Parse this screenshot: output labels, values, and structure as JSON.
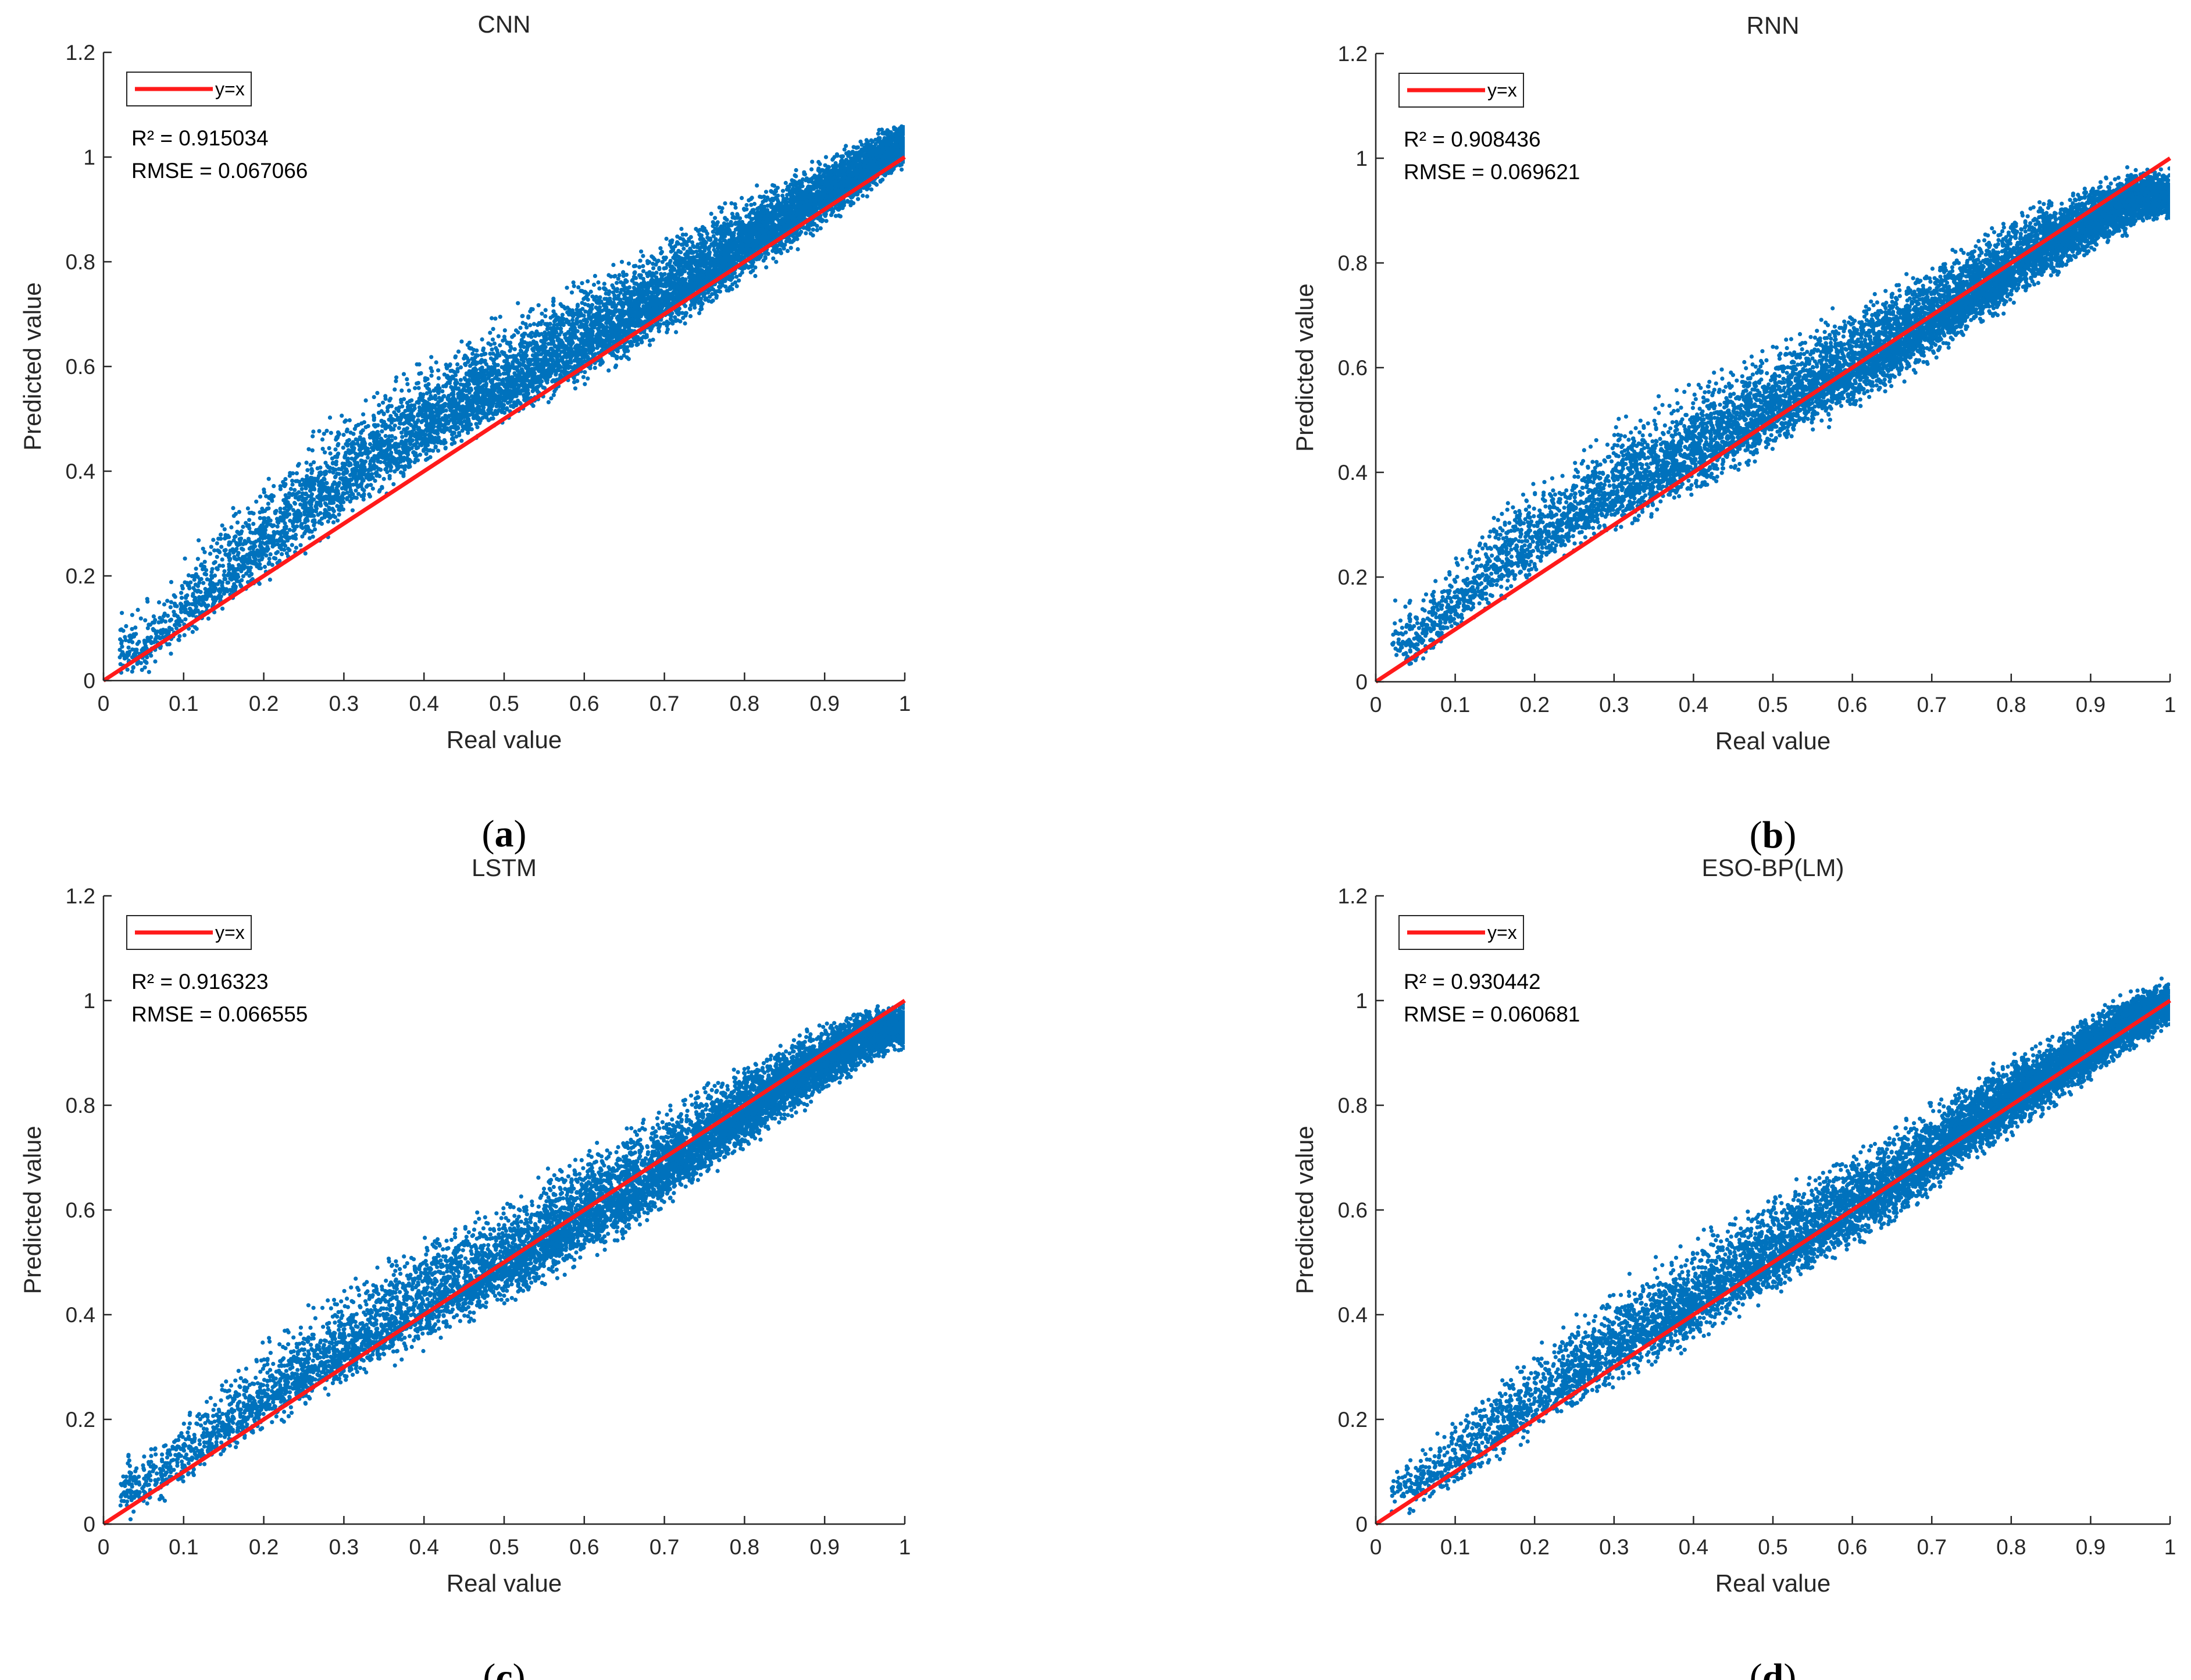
{
  "colors": {
    "scatter": "#0072BD",
    "fit_line": "#ff1a1a",
    "axis": "#262626"
  },
  "chart_data": [
    {
      "type": "scatter",
      "title": "CNN",
      "xlabel": "Real value",
      "ylabel": "Predicted value",
      "xlim": [
        0,
        1
      ],
      "ylim": [
        0,
        1.2
      ],
      "xticks": [
        "0",
        "0.1",
        "0.2",
        "0.3",
        "0.4",
        "0.5",
        "0.6",
        "0.7",
        "0.8",
        "0.9",
        "1"
      ],
      "yticks": [
        "0",
        "0.2",
        "0.4",
        "0.6",
        "0.8",
        "1",
        "1.2"
      ],
      "legend": [
        "y=x"
      ],
      "legend_position": "top-left",
      "reference_line": {
        "name": "y=x",
        "x": [
          0,
          1
        ],
        "y": [
          0,
          1
        ]
      },
      "stats": [
        "R² = 0.915034",
        "RMSE = 0.067066"
      ],
      "caption": "a",
      "cloud": [
        [
          0.05,
          0.06,
          0.05,
          0.08
        ],
        [
          0.15,
          0.2,
          0.06,
          0.1
        ],
        [
          0.25,
          0.33,
          0.07,
          0.11
        ],
        [
          0.35,
          0.44,
          0.07,
          0.11
        ],
        [
          0.45,
          0.53,
          0.07,
          0.11
        ],
        [
          0.55,
          0.61,
          0.07,
          0.11
        ],
        [
          0.65,
          0.69,
          0.07,
          0.1
        ],
        [
          0.75,
          0.78,
          0.06,
          0.09
        ],
        [
          0.85,
          0.88,
          0.06,
          0.07
        ],
        [
          0.95,
          0.98,
          0.05,
          0.05
        ],
        [
          0.99,
          1.02,
          0.04,
          0.04
        ]
      ],
      "num_points": 9000,
      "seed": 11
    },
    {
      "type": "scatter",
      "title": "RNN",
      "xlabel": "Real value",
      "ylabel": "Predicted value",
      "xlim": [
        0,
        1
      ],
      "ylim": [
        0,
        1.2
      ],
      "xticks": [
        "0",
        "0.1",
        "0.2",
        "0.3",
        "0.4",
        "0.5",
        "0.6",
        "0.7",
        "0.8",
        "0.9",
        "1"
      ],
      "yticks": [
        "0",
        "0.2",
        "0.4",
        "0.6",
        "0.8",
        "1",
        "1.2"
      ],
      "legend": [
        "y=x"
      ],
      "legend_position": "top-left",
      "reference_line": {
        "name": "y=x",
        "x": [
          0,
          1
        ],
        "y": [
          0,
          1
        ]
      },
      "stats": [
        "R² = 0.908436",
        "RMSE = 0.069621"
      ],
      "caption": "b",
      "cloud": [
        [
          0.05,
          0.08,
          0.05,
          0.07
        ],
        [
          0.15,
          0.22,
          0.06,
          0.09
        ],
        [
          0.25,
          0.32,
          0.06,
          0.1
        ],
        [
          0.35,
          0.4,
          0.07,
          0.11
        ],
        [
          0.45,
          0.48,
          0.07,
          0.11
        ],
        [
          0.55,
          0.56,
          0.07,
          0.11
        ],
        [
          0.65,
          0.64,
          0.07,
          0.1
        ],
        [
          0.75,
          0.74,
          0.06,
          0.09
        ],
        [
          0.85,
          0.84,
          0.06,
          0.07
        ],
        [
          0.95,
          0.92,
          0.05,
          0.05
        ],
        [
          0.99,
          0.93,
          0.04,
          0.04
        ]
      ],
      "num_points": 9000,
      "seed": 23
    },
    {
      "type": "scatter",
      "title": "LSTM",
      "xlabel": "Real value",
      "ylabel": "Predicted value",
      "xlim": [
        0,
        1
      ],
      "ylim": [
        0,
        1.2
      ],
      "xticks": [
        "0",
        "0.1",
        "0.2",
        "0.3",
        "0.4",
        "0.5",
        "0.6",
        "0.7",
        "0.8",
        "0.9",
        "1"
      ],
      "yticks": [
        "0",
        "0.2",
        "0.4",
        "0.6",
        "0.8",
        "1",
        "1.2"
      ],
      "legend": [
        "y=x"
      ],
      "legend_position": "top-left",
      "reference_line": {
        "name": "y=x",
        "x": [
          0,
          1
        ],
        "y": [
          0,
          1
        ]
      },
      "stats": [
        "R² = 0.916323",
        "RMSE = 0.066555"
      ],
      "caption": "c",
      "cloud": [
        [
          0.05,
          0.07,
          0.05,
          0.06
        ],
        [
          0.15,
          0.19,
          0.06,
          0.08
        ],
        [
          0.25,
          0.29,
          0.06,
          0.1
        ],
        [
          0.35,
          0.38,
          0.07,
          0.11
        ],
        [
          0.45,
          0.46,
          0.07,
          0.11
        ],
        [
          0.55,
          0.54,
          0.07,
          0.11
        ],
        [
          0.65,
          0.63,
          0.07,
          0.11
        ],
        [
          0.75,
          0.73,
          0.06,
          0.09
        ],
        [
          0.85,
          0.84,
          0.06,
          0.07
        ],
        [
          0.95,
          0.93,
          0.05,
          0.05
        ],
        [
          0.99,
          0.95,
          0.04,
          0.04
        ]
      ],
      "num_points": 9000,
      "seed": 37
    },
    {
      "type": "scatter",
      "title": "ESO-BP(LM)",
      "xlabel": "Real value",
      "ylabel": "Predicted value",
      "xlim": [
        0,
        1
      ],
      "ylim": [
        0,
        1.2
      ],
      "xticks": [
        "0",
        "0.1",
        "0.2",
        "0.3",
        "0.4",
        "0.5",
        "0.6",
        "0.7",
        "0.8",
        "0.9",
        "1"
      ],
      "yticks": [
        "0",
        "0.2",
        "0.4",
        "0.6",
        "0.8",
        "1",
        "1.2"
      ],
      "legend": [
        "y=x"
      ],
      "legend_position": "top-left",
      "reference_line": {
        "name": "y=x",
        "x": [
          0,
          1
        ],
        "y": [
          0,
          1
        ]
      },
      "stats": [
        "R² = 0.930442",
        "RMSE = 0.060681"
      ],
      "caption": "d",
      "cloud": [
        [
          0.05,
          0.07,
          0.05,
          0.06
        ],
        [
          0.15,
          0.18,
          0.06,
          0.08
        ],
        [
          0.25,
          0.29,
          0.06,
          0.09
        ],
        [
          0.35,
          0.38,
          0.07,
          0.1
        ],
        [
          0.45,
          0.47,
          0.07,
          0.1
        ],
        [
          0.55,
          0.56,
          0.07,
          0.1
        ],
        [
          0.65,
          0.65,
          0.07,
          0.09
        ],
        [
          0.75,
          0.76,
          0.06,
          0.08
        ],
        [
          0.85,
          0.86,
          0.06,
          0.06
        ],
        [
          0.95,
          0.96,
          0.05,
          0.05
        ],
        [
          0.99,
          0.99,
          0.04,
          0.04
        ]
      ],
      "num_points": 9000,
      "seed": 53
    }
  ]
}
